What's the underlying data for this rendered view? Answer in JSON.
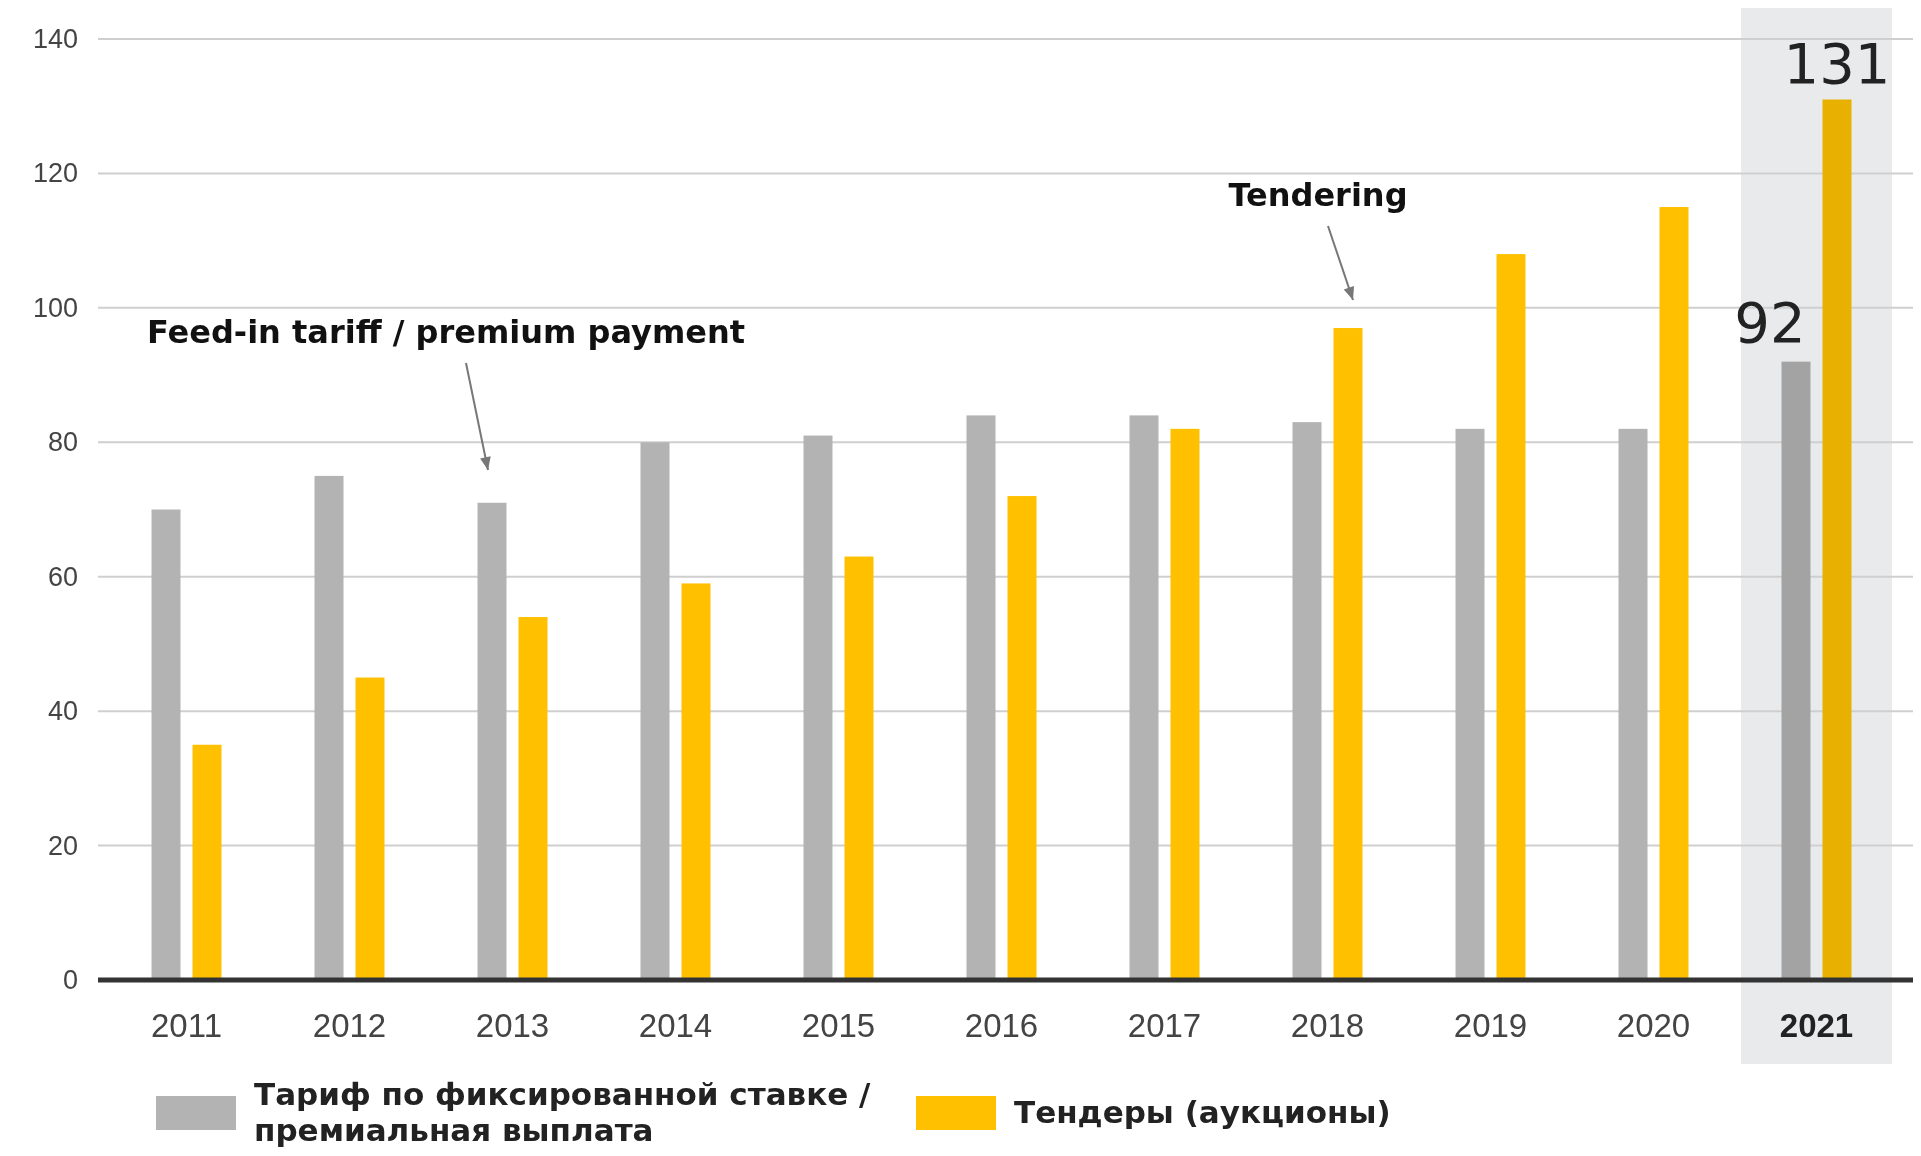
{
  "chart_data": {
    "type": "bar",
    "categories": [
      "2011",
      "2012",
      "2013",
      "2014",
      "2015",
      "2016",
      "2017",
      "2018",
      "2019",
      "2020",
      "2021"
    ],
    "series": [
      {
        "name": "Тариф по фиксированной ставке / премиальная выплата",
        "color": "#b3b3b3",
        "colors": [
          "#b3b3b3",
          "#b3b3b3",
          "#b3b3b3",
          "#b3b3b3",
          "#b3b3b3",
          "#b3b3b3",
          "#b3b3b3",
          "#b3b3b3",
          "#b3b3b3",
          "#b3b3b3",
          "#a3a3a3"
        ],
        "values": [
          70,
          75,
          71,
          80,
          81,
          84,
          84,
          83,
          82,
          82,
          92
        ],
        "value_labels": [
          null,
          null,
          null,
          null,
          null,
          null,
          null,
          null,
          null,
          null,
          "92"
        ]
      },
      {
        "name": "Тендеры (аукционы)",
        "color": "#ffc000",
        "colors": [
          "#ffc000",
          "#ffc000",
          "#ffc000",
          "#ffc000",
          "#ffc000",
          "#ffc000",
          "#ffc000",
          "#ffc000",
          "#ffc000",
          "#ffc000",
          "#e8b000"
        ],
        "values": [
          35,
          45,
          54,
          59,
          63,
          72,
          82,
          97,
          108,
          115,
          131
        ],
        "value_labels": [
          null,
          null,
          null,
          null,
          null,
          null,
          null,
          null,
          null,
          null,
          "131"
        ]
      }
    ],
    "ylim": [
      0,
      140
    ],
    "yticks": [
      0,
      20,
      40,
      60,
      80,
      100,
      120,
      140
    ],
    "grid": "y",
    "legend": "bottom",
    "bands": [
      {
        "axis": "x",
        "from": "2021",
        "to": "2021",
        "color": "#e8eaec"
      }
    ],
    "annotations": [
      "Feed-in tariff / premium payment",
      "Tendering"
    ]
  }
}
